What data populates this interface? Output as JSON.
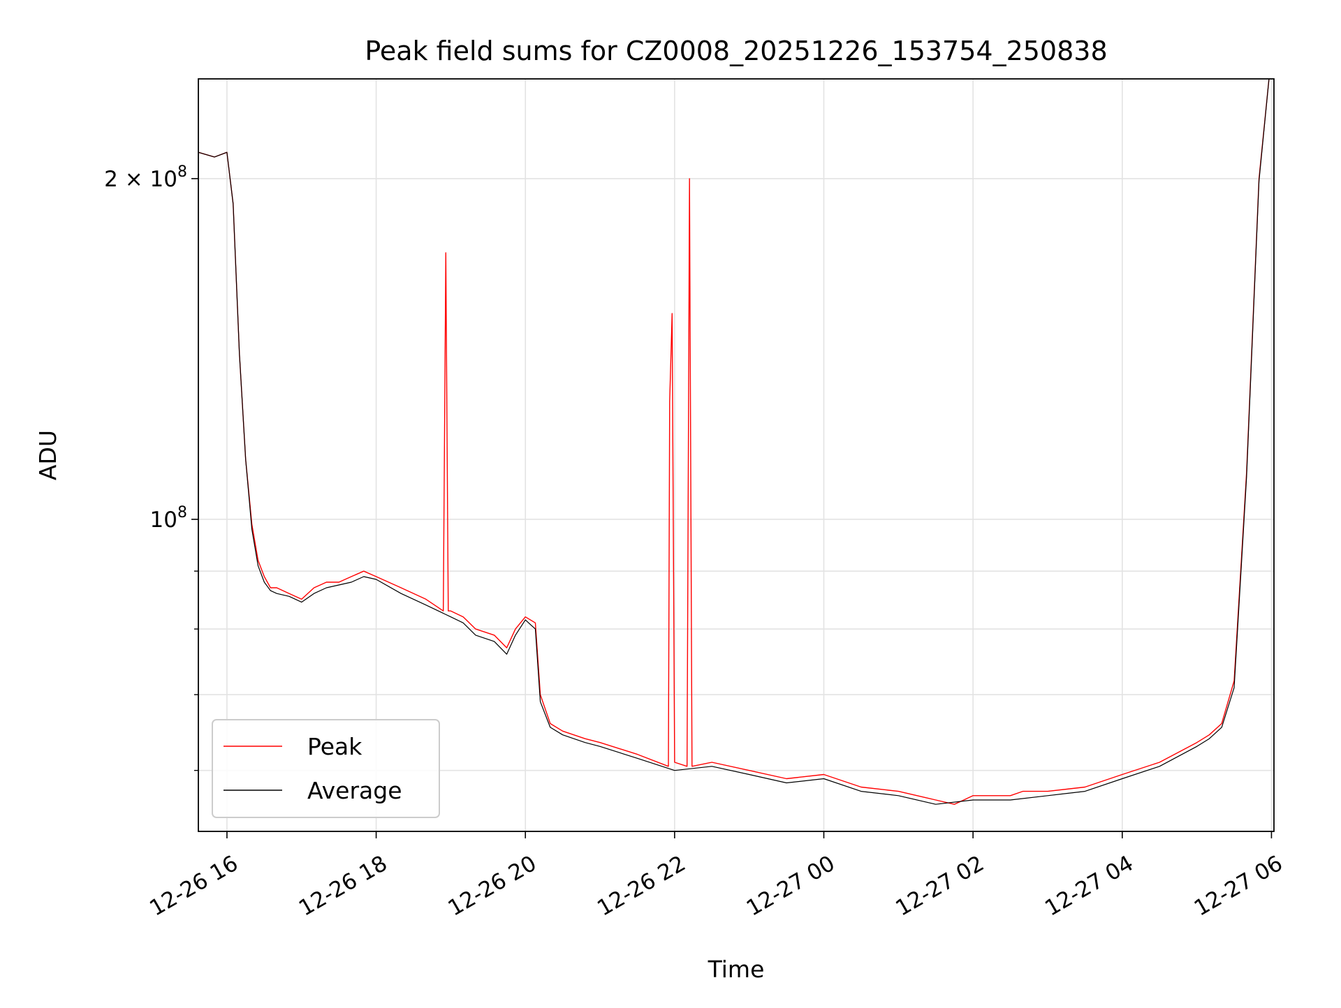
{
  "chart_data": {
    "type": "line",
    "title": "Peak field sums for CZ0008_20251226_153754_250838",
    "xlabel": "Time",
    "ylabel": "ADU",
    "x_scale": "time",
    "y_scale": "log",
    "x_range": [
      "2025-12-26 15:37",
      "2025-12-27 06:02"
    ],
    "ylim": [
      53000000,
      245000000
    ],
    "x_ticks": [
      "12-26 16",
      "12-26 18",
      "12-26 20",
      "12-26 22",
      "12-27 00",
      "12-27 02",
      "12-27 04",
      "12-27 06"
    ],
    "x_tick_times": [
      "2025-12-26 16:00",
      "2025-12-26 18:00",
      "2025-12-26 20:00",
      "2025-12-26 22:00",
      "2025-12-27 00:00",
      "2025-12-27 02:00",
      "2025-12-27 04:00",
      "2025-12-27 06:00"
    ],
    "y_major_ticks": [
      {
        "value": 200000000,
        "label": "2 × 10^8",
        "base": "2 × 10",
        "exp": "8"
      },
      {
        "value": 100000000,
        "label": "10^8",
        "base": "10",
        "exp": "8"
      }
    ],
    "y_minor_ticks": [
      60000000,
      70000000,
      80000000,
      90000000
    ],
    "grid": true,
    "legend_position": "lower-left",
    "series": [
      {
        "name": "Peak",
        "color": "#ff0000",
        "x": [
          "2025-12-26 15:37",
          "2025-12-26 15:50",
          "2025-12-26 16:00",
          "2025-12-26 16:05",
          "2025-12-26 16:10",
          "2025-12-26 16:15",
          "2025-12-26 16:20",
          "2025-12-26 16:25",
          "2025-12-26 16:30",
          "2025-12-26 16:35",
          "2025-12-26 16:40",
          "2025-12-26 16:50",
          "2025-12-26 17:00",
          "2025-12-26 17:10",
          "2025-12-26 17:20",
          "2025-12-26 17:30",
          "2025-12-26 17:40",
          "2025-12-26 17:50",
          "2025-12-26 18:00",
          "2025-12-26 18:20",
          "2025-12-26 18:40",
          "2025-12-26 18:54",
          "2025-12-26 18:56",
          "2025-12-26 18:58",
          "2025-12-26 19:00",
          "2025-12-26 19:10",
          "2025-12-26 19:20",
          "2025-12-26 19:35",
          "2025-12-26 19:45",
          "2025-12-26 19:52",
          "2025-12-26 20:00",
          "2025-12-26 20:08",
          "2025-12-26 20:12",
          "2025-12-26 20:20",
          "2025-12-26 20:30",
          "2025-12-26 20:48",
          "2025-12-26 21:00",
          "2025-12-26 21:30",
          "2025-12-26 21:55",
          "2025-12-26 21:56",
          "2025-12-26 21:58",
          "2025-12-26 22:00",
          "2025-12-26 22:10",
          "2025-12-26 22:12",
          "2025-12-26 22:14",
          "2025-12-26 22:30",
          "2025-12-26 23:00",
          "2025-12-26 23:30",
          "2025-12-27 00:00",
          "2025-12-27 00:30",
          "2025-12-27 01:00",
          "2025-12-27 01:30",
          "2025-12-27 01:45",
          "2025-12-27 02:00",
          "2025-12-27 02:30",
          "2025-12-27 02:40",
          "2025-12-27 03:00",
          "2025-12-27 03:30",
          "2025-12-27 04:00",
          "2025-12-27 04:30",
          "2025-12-27 05:00",
          "2025-12-27 05:10",
          "2025-12-27 05:20",
          "2025-12-27 05:30",
          "2025-12-27 05:40",
          "2025-12-27 05:50",
          "2025-12-27 05:58"
        ],
        "values": [
          211000000,
          209000000,
          211000000,
          190000000,
          140000000,
          113000000,
          99000000,
          92000000,
          89000000,
          87000000,
          87000000,
          86000000,
          85000000,
          87000000,
          88000000,
          88000000,
          89000000,
          90000000,
          89000000,
          87000000,
          85000000,
          83000000,
          172000000,
          83000000,
          83000000,
          82000000,
          80000000,
          79000000,
          77000000,
          80000000,
          82000000,
          81000000,
          70000000,
          66000000,
          65000000,
          64000000,
          63500000,
          62000000,
          60500000,
          127000000,
          152000000,
          61000000,
          60500000,
          200000000,
          60500000,
          61000000,
          60000000,
          59000000,
          59500000,
          58000000,
          57500000,
          56500000,
          56000000,
          57000000,
          57000000,
          57500000,
          57500000,
          58000000,
          59500000,
          61000000,
          63500000,
          64500000,
          66000000,
          72000000,
          110000000,
          200000000,
          245000000
        ]
      },
      {
        "name": "Average",
        "color": "#000000",
        "x": [
          "2025-12-26 15:37",
          "2025-12-26 15:50",
          "2025-12-26 16:00",
          "2025-12-26 16:05",
          "2025-12-26 16:10",
          "2025-12-26 16:15",
          "2025-12-26 16:20",
          "2025-12-26 16:25",
          "2025-12-26 16:30",
          "2025-12-26 16:35",
          "2025-12-26 16:40",
          "2025-12-26 16:50",
          "2025-12-26 17:00",
          "2025-12-26 17:10",
          "2025-12-26 17:20",
          "2025-12-26 17:30",
          "2025-12-26 17:40",
          "2025-12-26 17:50",
          "2025-12-26 18:00",
          "2025-12-26 18:20",
          "2025-12-26 18:40",
          "2025-12-26 19:00",
          "2025-12-26 19:10",
          "2025-12-26 19:20",
          "2025-12-26 19:35",
          "2025-12-26 19:45",
          "2025-12-26 19:52",
          "2025-12-26 20:00",
          "2025-12-26 20:08",
          "2025-12-26 20:12",
          "2025-12-26 20:20",
          "2025-12-26 20:30",
          "2025-12-26 20:48",
          "2025-12-26 21:00",
          "2025-12-26 21:30",
          "2025-12-26 22:00",
          "2025-12-26 22:30",
          "2025-12-26 23:00",
          "2025-12-26 23:30",
          "2025-12-27 00:00",
          "2025-12-27 00:30",
          "2025-12-27 01:00",
          "2025-12-27 01:30",
          "2025-12-27 02:00",
          "2025-12-27 02:30",
          "2025-12-27 03:00",
          "2025-12-27 03:30",
          "2025-12-27 04:00",
          "2025-12-27 04:30",
          "2025-12-27 05:00",
          "2025-12-27 05:10",
          "2025-12-27 05:20",
          "2025-12-27 05:30",
          "2025-12-27 05:40",
          "2025-12-27 05:50",
          "2025-12-27 05:58"
        ],
        "values": [
          211000000,
          209000000,
          211000000,
          190000000,
          140000000,
          113000000,
          98000000,
          91000000,
          88000000,
          86500000,
          86000000,
          85500000,
          84500000,
          86000000,
          87000000,
          87500000,
          88000000,
          89000000,
          88500000,
          86000000,
          84000000,
          82000000,
          81000000,
          79000000,
          78000000,
          76000000,
          79000000,
          81500000,
          80000000,
          69000000,
          65500000,
          64500000,
          63500000,
          63000000,
          61500000,
          60000000,
          60500000,
          59500000,
          58500000,
          59000000,
          57500000,
          57000000,
          56000000,
          56500000,
          56500000,
          57000000,
          57500000,
          59000000,
          60500000,
          63000000,
          64000000,
          65500000,
          71000000,
          109000000,
          199000000,
          245000000
        ]
      }
    ]
  }
}
